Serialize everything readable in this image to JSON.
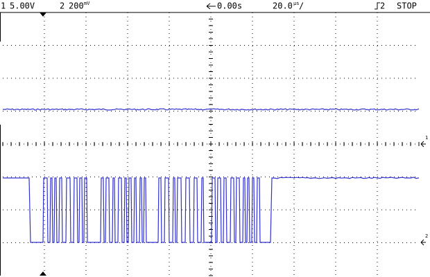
{
  "header": {
    "ch1_label": "1",
    "ch1_scale": "5.00V",
    "ch2_label": "2",
    "ch2_scale": "200",
    "ch2_unit": "mV",
    "delay": "0.00s",
    "timebase": "20.0",
    "timebase_unit": "µs",
    "timebase_suffix": "/",
    "trigger_source": "2",
    "status": "STOP"
  },
  "markers": {
    "ch1": "1",
    "ch2": "2"
  }
}
